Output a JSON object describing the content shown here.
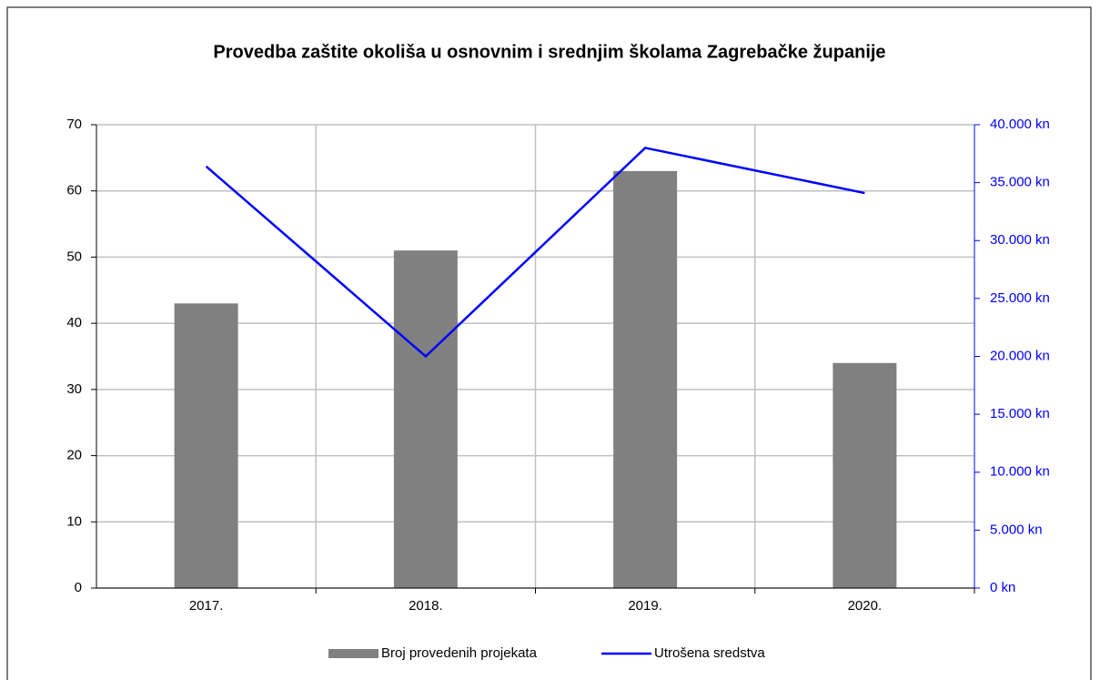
{
  "chart_data": {
    "type": "bar",
    "title": "Provedba zaštite okoliša u osnovnim i srednjim školama Zagrebačke županije",
    "categories": [
      "2017.",
      "2018.",
      "2019.",
      "2020."
    ],
    "series": [
      {
        "name": "Broj provedenih projekata",
        "type": "bar",
        "color": "#808080",
        "values": [
          43,
          51,
          63,
          34
        ]
      },
      {
        "name": "Utrošena sredstva",
        "type": "line",
        "axis": "y2",
        "color": "#0000ff",
        "values": [
          36400,
          20000,
          38000,
          34100
        ]
      }
    ],
    "ylim": [
      0,
      70
    ],
    "yticks": [
      0,
      10,
      20,
      30,
      40,
      50,
      60,
      70
    ],
    "y2lim": [
      0,
      40000
    ],
    "y2ticks": [
      {
        "value": 0,
        "label": "0 kn"
      },
      {
        "value": 5000,
        "label": "5.000 kn"
      },
      {
        "value": 10000,
        "label": "10.000 kn"
      },
      {
        "value": 15000,
        "label": "15.000 kn"
      },
      {
        "value": 20000,
        "label": "20.000 kn"
      },
      {
        "value": 25000,
        "label": "25.000 kn"
      },
      {
        "value": 30000,
        "label": "30.000 kn"
      },
      {
        "value": 35000,
        "label": "35.000 kn"
      },
      {
        "value": 40000,
        "label": "40.000 kn"
      }
    ],
    "grid": true,
    "legend": "bottom"
  }
}
